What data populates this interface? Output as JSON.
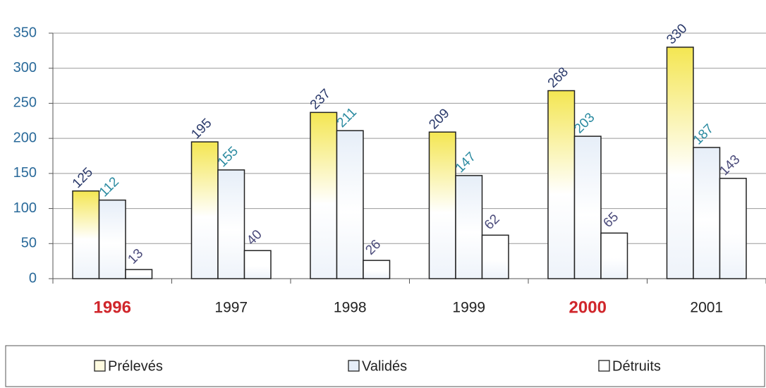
{
  "chart_data": {
    "type": "bar",
    "categories": [
      "1996",
      "1997",
      "1998",
      "1999",
      "2000",
      "2001"
    ],
    "category_styles": [
      {
        "color": "#d0262b",
        "bold": true
      },
      {
        "color": "#222222",
        "bold": false
      },
      {
        "color": "#222222",
        "bold": false
      },
      {
        "color": "#222222",
        "bold": false
      },
      {
        "color": "#d0262b",
        "bold": true
      },
      {
        "color": "#222222",
        "bold": false
      }
    ],
    "series": [
      {
        "name": "Prélevés",
        "color": "#f4e652",
        "label_color": "#2b3a6b",
        "values": [
          125,
          195,
          237,
          209,
          268,
          330
        ]
      },
      {
        "name": "Validés",
        "color": "#e6eef8",
        "label_color": "#2a8aa0",
        "values": [
          112,
          155,
          211,
          147,
          203,
          187
        ]
      },
      {
        "name": "Détruits",
        "color": "#ffffff",
        "label_color": "#4a4a7a",
        "values": [
          13,
          40,
          26,
          62,
          65,
          143
        ]
      }
    ],
    "ylim": [
      0,
      350
    ],
    "yticks": [
      0,
      50,
      100,
      150,
      200,
      250,
      300,
      350
    ],
    "grid": true,
    "legend": "bottom"
  }
}
